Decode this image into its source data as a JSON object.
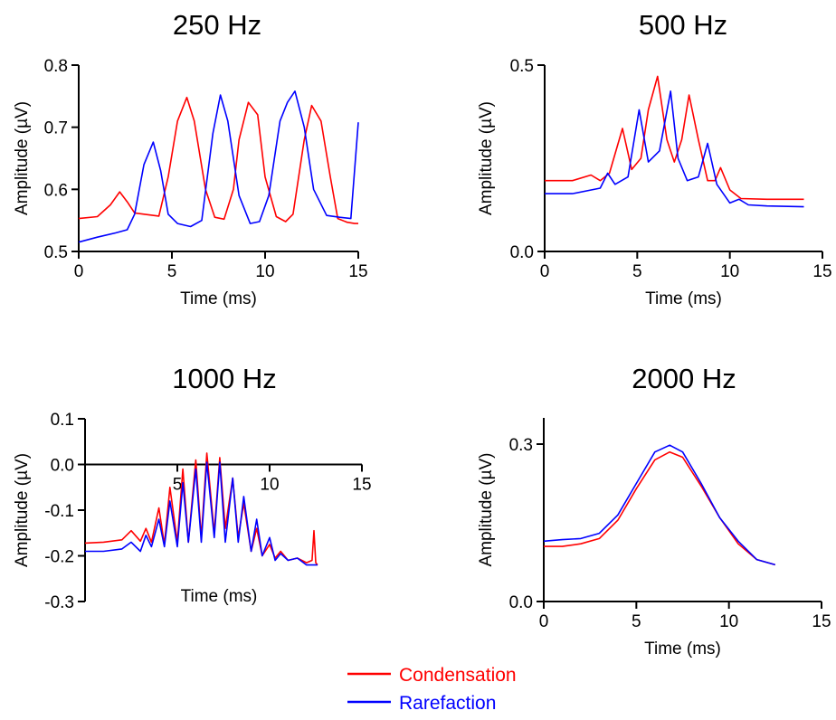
{
  "chart_data": [
    {
      "type": "line",
      "title": "250 Hz",
      "xlabel": "Time (ms)",
      "ylabel": "Amplitude (µV)",
      "xlim": [
        0,
        15
      ],
      "ylim": [
        0.5,
        0.8
      ],
      "x_ticks": [
        "0",
        "5",
        "10",
        "15"
      ],
      "y_ticks": [
        "0.5",
        "0.6",
        "0.7",
        "0.8"
      ],
      "x_axis_at_zero": false,
      "grid": false,
      "series": [
        {
          "name": "Condensation",
          "color": "#ff0000",
          "x": [
            0,
            1.0,
            1.7,
            2.2,
            2.6,
            3.0,
            3.5,
            4.3,
            4.8,
            5.3,
            5.8,
            6.2,
            6.8,
            7.3,
            7.8,
            8.3,
            8.6,
            9.1,
            9.6,
            10.0,
            10.6,
            11.1,
            11.5,
            12.1,
            12.5,
            13.0,
            13.5,
            13.9,
            14.4,
            14.8,
            15.0
          ],
          "y": [
            0.553,
            0.556,
            0.575,
            0.596,
            0.58,
            0.562,
            0.56,
            0.557,
            0.62,
            0.71,
            0.748,
            0.71,
            0.6,
            0.555,
            0.552,
            0.6,
            0.68,
            0.74,
            0.72,
            0.62,
            0.556,
            0.548,
            0.56,
            0.68,
            0.735,
            0.71,
            0.62,
            0.553,
            0.547,
            0.545,
            0.545
          ]
        },
        {
          "name": "Rarefaction",
          "color": "#0000ff",
          "x": [
            0,
            1.0,
            2.0,
            2.6,
            3.0,
            3.5,
            4.0,
            4.4,
            4.8,
            5.3,
            6.0,
            6.6,
            7.2,
            7.6,
            8.0,
            8.6,
            9.2,
            9.7,
            10.2,
            10.8,
            11.2,
            11.6,
            12.1,
            12.6,
            13.3,
            14.0,
            14.6,
            15.0
          ],
          "y": [
            0.515,
            0.523,
            0.53,
            0.535,
            0.56,
            0.64,
            0.676,
            0.63,
            0.56,
            0.545,
            0.54,
            0.55,
            0.69,
            0.752,
            0.71,
            0.59,
            0.545,
            0.548,
            0.59,
            0.71,
            0.74,
            0.758,
            0.7,
            0.6,
            0.558,
            0.555,
            0.553,
            0.708
          ]
        }
      ]
    },
    {
      "type": "line",
      "title": "500 Hz",
      "xlabel": "Time (ms)",
      "ylabel": "Amplitude (µV)",
      "xlim": [
        0,
        15
      ],
      "ylim": [
        0.0,
        0.5
      ],
      "x_ticks": [
        "0",
        "5",
        "10",
        "15"
      ],
      "y_ticks": [
        "0.0",
        "0.5"
      ],
      "x_axis_at_zero": false,
      "grid": false,
      "series": [
        {
          "name": "Condensation",
          "color": "#ff0000",
          "x": [
            0,
            1.5,
            2.5,
            3.0,
            3.5,
            4.2,
            4.7,
            5.2,
            5.6,
            6.1,
            6.6,
            7.0,
            7.4,
            7.8,
            8.3,
            8.8,
            9.2,
            9.5,
            10.0,
            10.6,
            12.0,
            14.0
          ],
          "y": [
            0.19,
            0.19,
            0.205,
            0.19,
            0.21,
            0.33,
            0.22,
            0.25,
            0.38,
            0.47,
            0.3,
            0.24,
            0.3,
            0.42,
            0.3,
            0.19,
            0.19,
            0.225,
            0.165,
            0.142,
            0.14,
            0.14
          ]
        },
        {
          "name": "Rarefaction",
          "color": "#0000ff",
          "x": [
            0,
            1.5,
            3.0,
            3.4,
            3.8,
            4.5,
            5.1,
            5.6,
            6.2,
            6.8,
            7.2,
            7.7,
            8.3,
            8.8,
            9.3,
            10.0,
            10.5,
            11.0,
            12.0,
            14.0
          ],
          "y": [
            0.155,
            0.155,
            0.17,
            0.21,
            0.18,
            0.2,
            0.38,
            0.24,
            0.27,
            0.43,
            0.25,
            0.19,
            0.2,
            0.29,
            0.18,
            0.13,
            0.14,
            0.125,
            0.122,
            0.12
          ]
        }
      ]
    },
    {
      "type": "line",
      "title": "1000 Hz",
      "xlabel": "Time (ms)",
      "ylabel": "Amplitude (µV)",
      "xlim": [
        0,
        15
      ],
      "ylim": [
        -0.3,
        0.1
      ],
      "x_ticks": [
        "5",
        "10",
        "15"
      ],
      "y_ticks": [
        "0.1",
        "0.0",
        "-0.1",
        "-0.2",
        "-0.3"
      ],
      "x_axis_at_zero": true,
      "grid": false,
      "series": [
        {
          "name": "Condensation",
          "color": "#ff0000",
          "x": [
            0,
            1.0,
            2.0,
            2.5,
            3.0,
            3.3,
            3.6,
            4.0,
            4.3,
            4.6,
            5.0,
            5.3,
            5.6,
            6.0,
            6.3,
            6.6,
            7.0,
            7.3,
            7.6,
            8.0,
            8.3,
            8.6,
            9.0,
            9.3,
            9.6,
            10.0,
            10.3,
            10.6,
            11.0,
            11.5,
            12.0,
            12.3,
            12.4,
            12.5,
            12.6
          ],
          "y": [
            -0.172,
            -0.17,
            -0.165,
            -0.145,
            -0.168,
            -0.14,
            -0.17,
            -0.095,
            -0.175,
            -0.05,
            -0.17,
            -0.01,
            -0.17,
            0.01,
            -0.16,
            0.025,
            -0.15,
            0.015,
            -0.14,
            -0.03,
            -0.16,
            -0.085,
            -0.19,
            -0.14,
            -0.2,
            -0.175,
            -0.205,
            -0.19,
            -0.21,
            -0.205,
            -0.215,
            -0.21,
            -0.145,
            -0.215,
            -0.22
          ]
        },
        {
          "name": "Rarefaction",
          "color": "#0000ff",
          "x": [
            0,
            1.0,
            2.0,
            2.5,
            3.0,
            3.3,
            3.6,
            4.0,
            4.3,
            4.6,
            5.0,
            5.3,
            5.6,
            6.0,
            6.3,
            6.6,
            7.0,
            7.3,
            7.6,
            8.0,
            8.3,
            8.6,
            9.0,
            9.3,
            9.6,
            10.0,
            10.3,
            10.6,
            11.0,
            11.5,
            12.0,
            12.6
          ],
          "y": [
            -0.19,
            -0.19,
            -0.185,
            -0.17,
            -0.19,
            -0.155,
            -0.18,
            -0.12,
            -0.18,
            -0.08,
            -0.18,
            -0.04,
            -0.17,
            -0.01,
            -0.17,
            0.005,
            -0.16,
            0.005,
            -0.17,
            -0.03,
            -0.17,
            -0.07,
            -0.19,
            -0.12,
            -0.2,
            -0.16,
            -0.21,
            -0.195,
            -0.21,
            -0.205,
            -0.22,
            -0.22
          ]
        }
      ]
    },
    {
      "type": "line",
      "title": "2000 Hz",
      "xlabel": "Time (ms)",
      "ylabel": "Amplitude (µV)",
      "xlim": [
        0,
        15
      ],
      "ylim": [
        0.0,
        0.35
      ],
      "x_ticks": [
        "0",
        "5",
        "10",
        "15"
      ],
      "y_ticks": [
        "0.0",
        "0.3"
      ],
      "x_axis_at_zero": false,
      "grid": false,
      "series": [
        {
          "name": "Condensation",
          "color": "#ff0000",
          "x": [
            0,
            1.0,
            2.0,
            3.0,
            4.0,
            5.0,
            6.0,
            6.8,
            7.5,
            8.5,
            9.5,
            10.5,
            11.5,
            12.5
          ],
          "y": [
            0.105,
            0.105,
            0.11,
            0.12,
            0.155,
            0.215,
            0.27,
            0.285,
            0.275,
            0.22,
            0.16,
            0.11,
            0.08,
            0.07
          ]
        },
        {
          "name": "Rarefaction",
          "color": "#0000ff",
          "x": [
            0,
            1.0,
            2.0,
            3.0,
            4.0,
            5.0,
            6.0,
            6.8,
            7.5,
            8.5,
            9.5,
            10.5,
            11.5,
            12.5
          ],
          "y": [
            0.115,
            0.118,
            0.12,
            0.13,
            0.165,
            0.225,
            0.285,
            0.298,
            0.285,
            0.225,
            0.16,
            0.115,
            0.08,
            0.07
          ]
        }
      ]
    }
  ],
  "legend": {
    "items": [
      {
        "label": "Condensation",
        "color": "#ff0000"
      },
      {
        "label": "Rarefaction",
        "color": "#0000ff"
      }
    ]
  }
}
